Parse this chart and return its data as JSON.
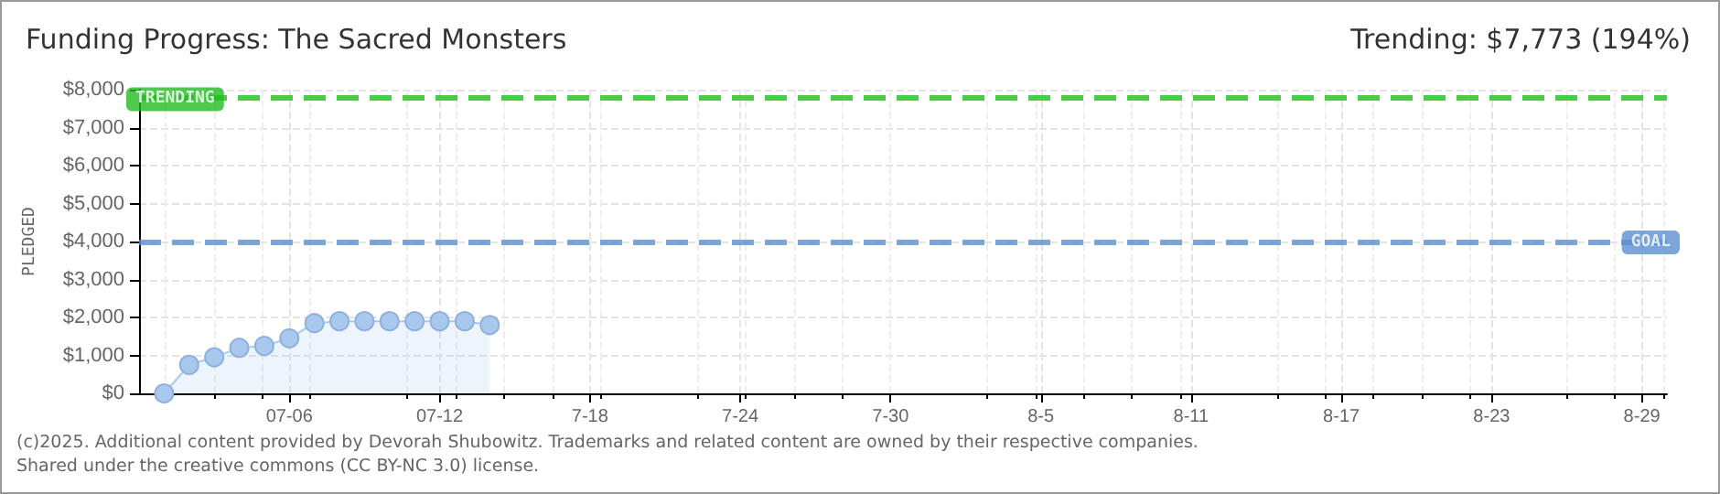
{
  "chart_data": {
    "type": "area",
    "title": "Funding Progress: The Sacred Monsters",
    "subtitle": "Trending: $7,773 (194%)",
    "ylabel": "PLEDGED",
    "x": [
      "--07-01",
      "--07-02",
      "--07-03",
      "--07-04",
      "--07-05",
      "--07-06",
      "--07-07",
      "--07-08",
      "--07-09",
      "--07-10",
      "--07-11",
      "--07-12",
      "--07-13",
      "--07-14"
    ],
    "series": [
      {
        "color": "#a9c8ee",
        "values": [
          0,
          750,
          950,
          1200,
          1250,
          1450,
          1850,
          1900,
          1900,
          1900,
          1900,
          1900,
          1900,
          1800
        ]
      }
    ],
    "xlim": [
      "--06-30",
      "--08-30"
    ],
    "xticks": [
      {
        "value": "--07-06",
        "label": "07-06"
      },
      {
        "value": "--07-12",
        "label": "07-12"
      },
      {
        "value": "--07-18",
        "label": "7-18"
      },
      {
        "value": "--07-24",
        "label": "7-24"
      },
      {
        "value": "--07-30",
        "label": "7-30"
      },
      {
        "value": "--08-05",
        "label": "8-5"
      },
      {
        "value": "--08-11",
        "label": "8-11"
      },
      {
        "value": "--08-17",
        "label": "8-17"
      },
      {
        "value": "--08-23",
        "label": "8-23"
      },
      {
        "value": "--08-29",
        "label": "8-29"
      }
    ],
    "ylim": [
      0,
      8000
    ],
    "yticks": [
      {
        "value": 0,
        "label": "$0"
      },
      {
        "value": 1000,
        "label": "$1,000"
      },
      {
        "value": 2000,
        "label": "$2,000"
      },
      {
        "value": 3000,
        "label": "$3,000"
      },
      {
        "value": 4000,
        "label": "$4,000"
      },
      {
        "value": 5000,
        "label": "$5,000"
      },
      {
        "value": 6000,
        "label": "$6,000"
      },
      {
        "value": 7000,
        "label": "$7,000"
      },
      {
        "value": 8000,
        "label": "$8,000"
      }
    ],
    "ref_lines": [
      {
        "axis": "y",
        "value": 7773,
        "label": "TRENDING",
        "color": "#22bb22",
        "line_style": "dashed"
      },
      {
        "axis": "y",
        "value": 4000,
        "label": "GOAL",
        "color": "#5b8fd0",
        "line_style": "dashed"
      }
    ],
    "annotations": [
      "(c)2025. Additional content provided by Devorah Shubowitz. Trademarks and related content are owned by their respective companies.",
      "Shared under the creative commons (CC BY-NC 3.0) license."
    ],
    "grid": true,
    "marker": "circle",
    "line_style": "solid"
  }
}
